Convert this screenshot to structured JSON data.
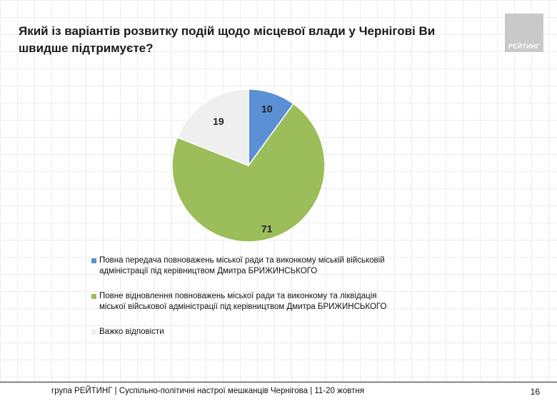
{
  "header": {
    "title": "Який із варіантів розвитку подій щодо місцевої влади у Чернігові Ви швидше підтримуєте?",
    "logo_text": "РЕЙТИНГ"
  },
  "chart_data": {
    "type": "pie",
    "title": "Який із варіантів розвитку подій щодо місцевої влади у Чернігові Ви швидше підтримуєте?",
    "legend_position": "bottom-left",
    "slices": [
      {
        "name": "Повна передача повноважень міської ради та виконкому міській військовій адміністрації під керівництвом Дмитра БРИЖИНСЬКОГО",
        "value": 10,
        "label": "10",
        "color": "#5b8fd6"
      },
      {
        "name": "Повне відновлення повноважень міської ради та виконкому та ліквідація міської військової адміністрації під керівництвом Дмитра БРИЖИНСЬКОГО",
        "value": 71,
        "label": "71",
        "color": "#9bbd5a"
      },
      {
        "name": "Важко відповісти",
        "value": 19,
        "label": "19",
        "color": "#efefef"
      }
    ]
  },
  "footer": {
    "source": "група РЕЙТИНГ  | Суспільно-політичні настрої мешканців Чернігова | 11-20 жовтня",
    "page_number": "16"
  }
}
